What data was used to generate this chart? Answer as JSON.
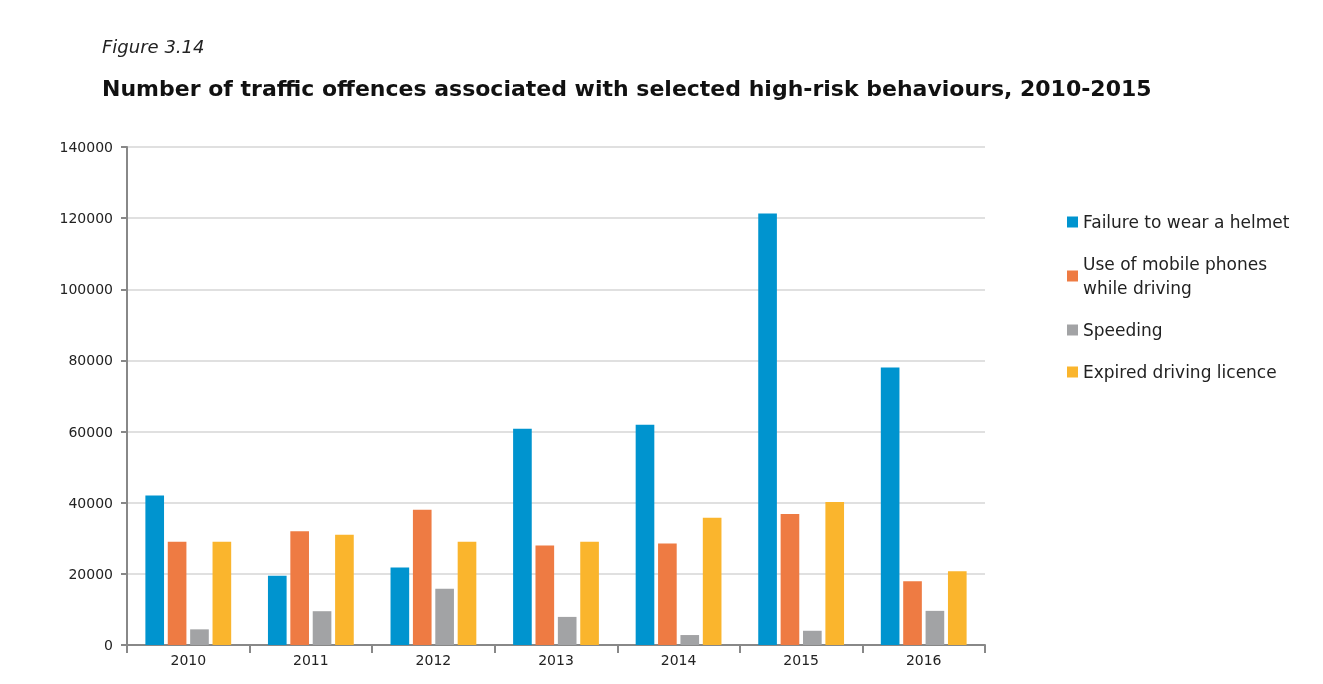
{
  "chart_data": {
    "type": "bar",
    "title": "Figure 3.14",
    "subtitle": "Number of traffic offences associated with selected high-risk behaviours, 2010-2015",
    "categories": [
      "2010",
      "2011",
      "2012",
      "2013",
      "2014",
      "2015",
      "2016"
    ],
    "series": [
      {
        "name": "Failure to wear a helmet",
        "color": "#0094cf",
        "values": [
          42000,
          19500,
          21800,
          60800,
          61900,
          121300,
          78000
        ]
      },
      {
        "name": "Use of mobile phones while driving",
        "color": "#ee7b43",
        "values": [
          29000,
          32000,
          38000,
          28000,
          28500,
          36800,
          17900
        ]
      },
      {
        "name": "Speeding",
        "color": "#a2a3a5",
        "values": [
          4400,
          9500,
          15800,
          7900,
          2800,
          4000,
          9600
        ]
      },
      {
        "name": "Expired driving licence",
        "color": "#fab52d",
        "values": [
          29000,
          31000,
          29000,
          29000,
          35800,
          40200,
          20700
        ]
      }
    ],
    "ylim": [
      0,
      140000
    ],
    "yticks": [
      0,
      20000,
      40000,
      60000,
      80000,
      100000,
      120000,
      140000
    ],
    "grid": "y",
    "legend": "right"
  }
}
